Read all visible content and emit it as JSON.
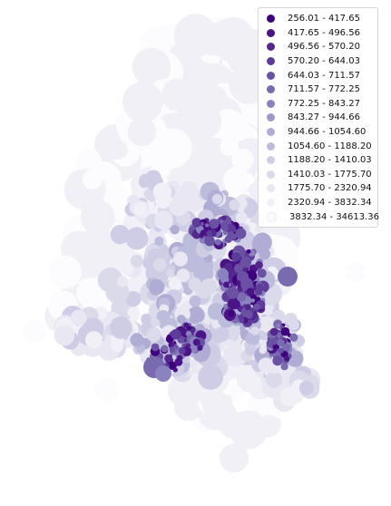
{
  "map": {
    "type": "choropleth",
    "legend_position": "top-right",
    "legend_items": [
      {
        "label": "256.01 - 417.65",
        "color": "#3f007d"
      },
      {
        "label": "417.65 - 496.56",
        "color": "#4a1486"
      },
      {
        "label": "496.56 - 570.20",
        "color": "#54278f"
      },
      {
        "label": "570.20 - 644.03",
        "color": "#5e3c99"
      },
      {
        "label": "644.03 - 711.57",
        "color": "#6a51a3"
      },
      {
        "label": "711.57 - 772.25",
        "color": "#7a6bb0"
      },
      {
        "label": "772.25 - 843.27",
        "color": "#8b83bf"
      },
      {
        "label": "843.27 - 944.66",
        "color": "#9e9ac8"
      },
      {
        "label": "944.66 - 1054.60",
        "color": "#b0add5"
      },
      {
        "label": "1054.60 - 1188.20",
        "color": "#bcbddc"
      },
      {
        "label": "1188.20 - 1410.03",
        "color": "#cfcde6"
      },
      {
        "label": "1410.03 - 1775.70",
        "color": "#dadaeb"
      },
      {
        "label": "1775.70 - 2320.94",
        "color": "#e8e7f2"
      },
      {
        "label": "2320.94 - 3832.34",
        "color": "#f2f0f7"
      },
      {
        "label": "3832.34 - 34613.36",
        "color": "#fcfbfd"
      }
    ]
  }
}
